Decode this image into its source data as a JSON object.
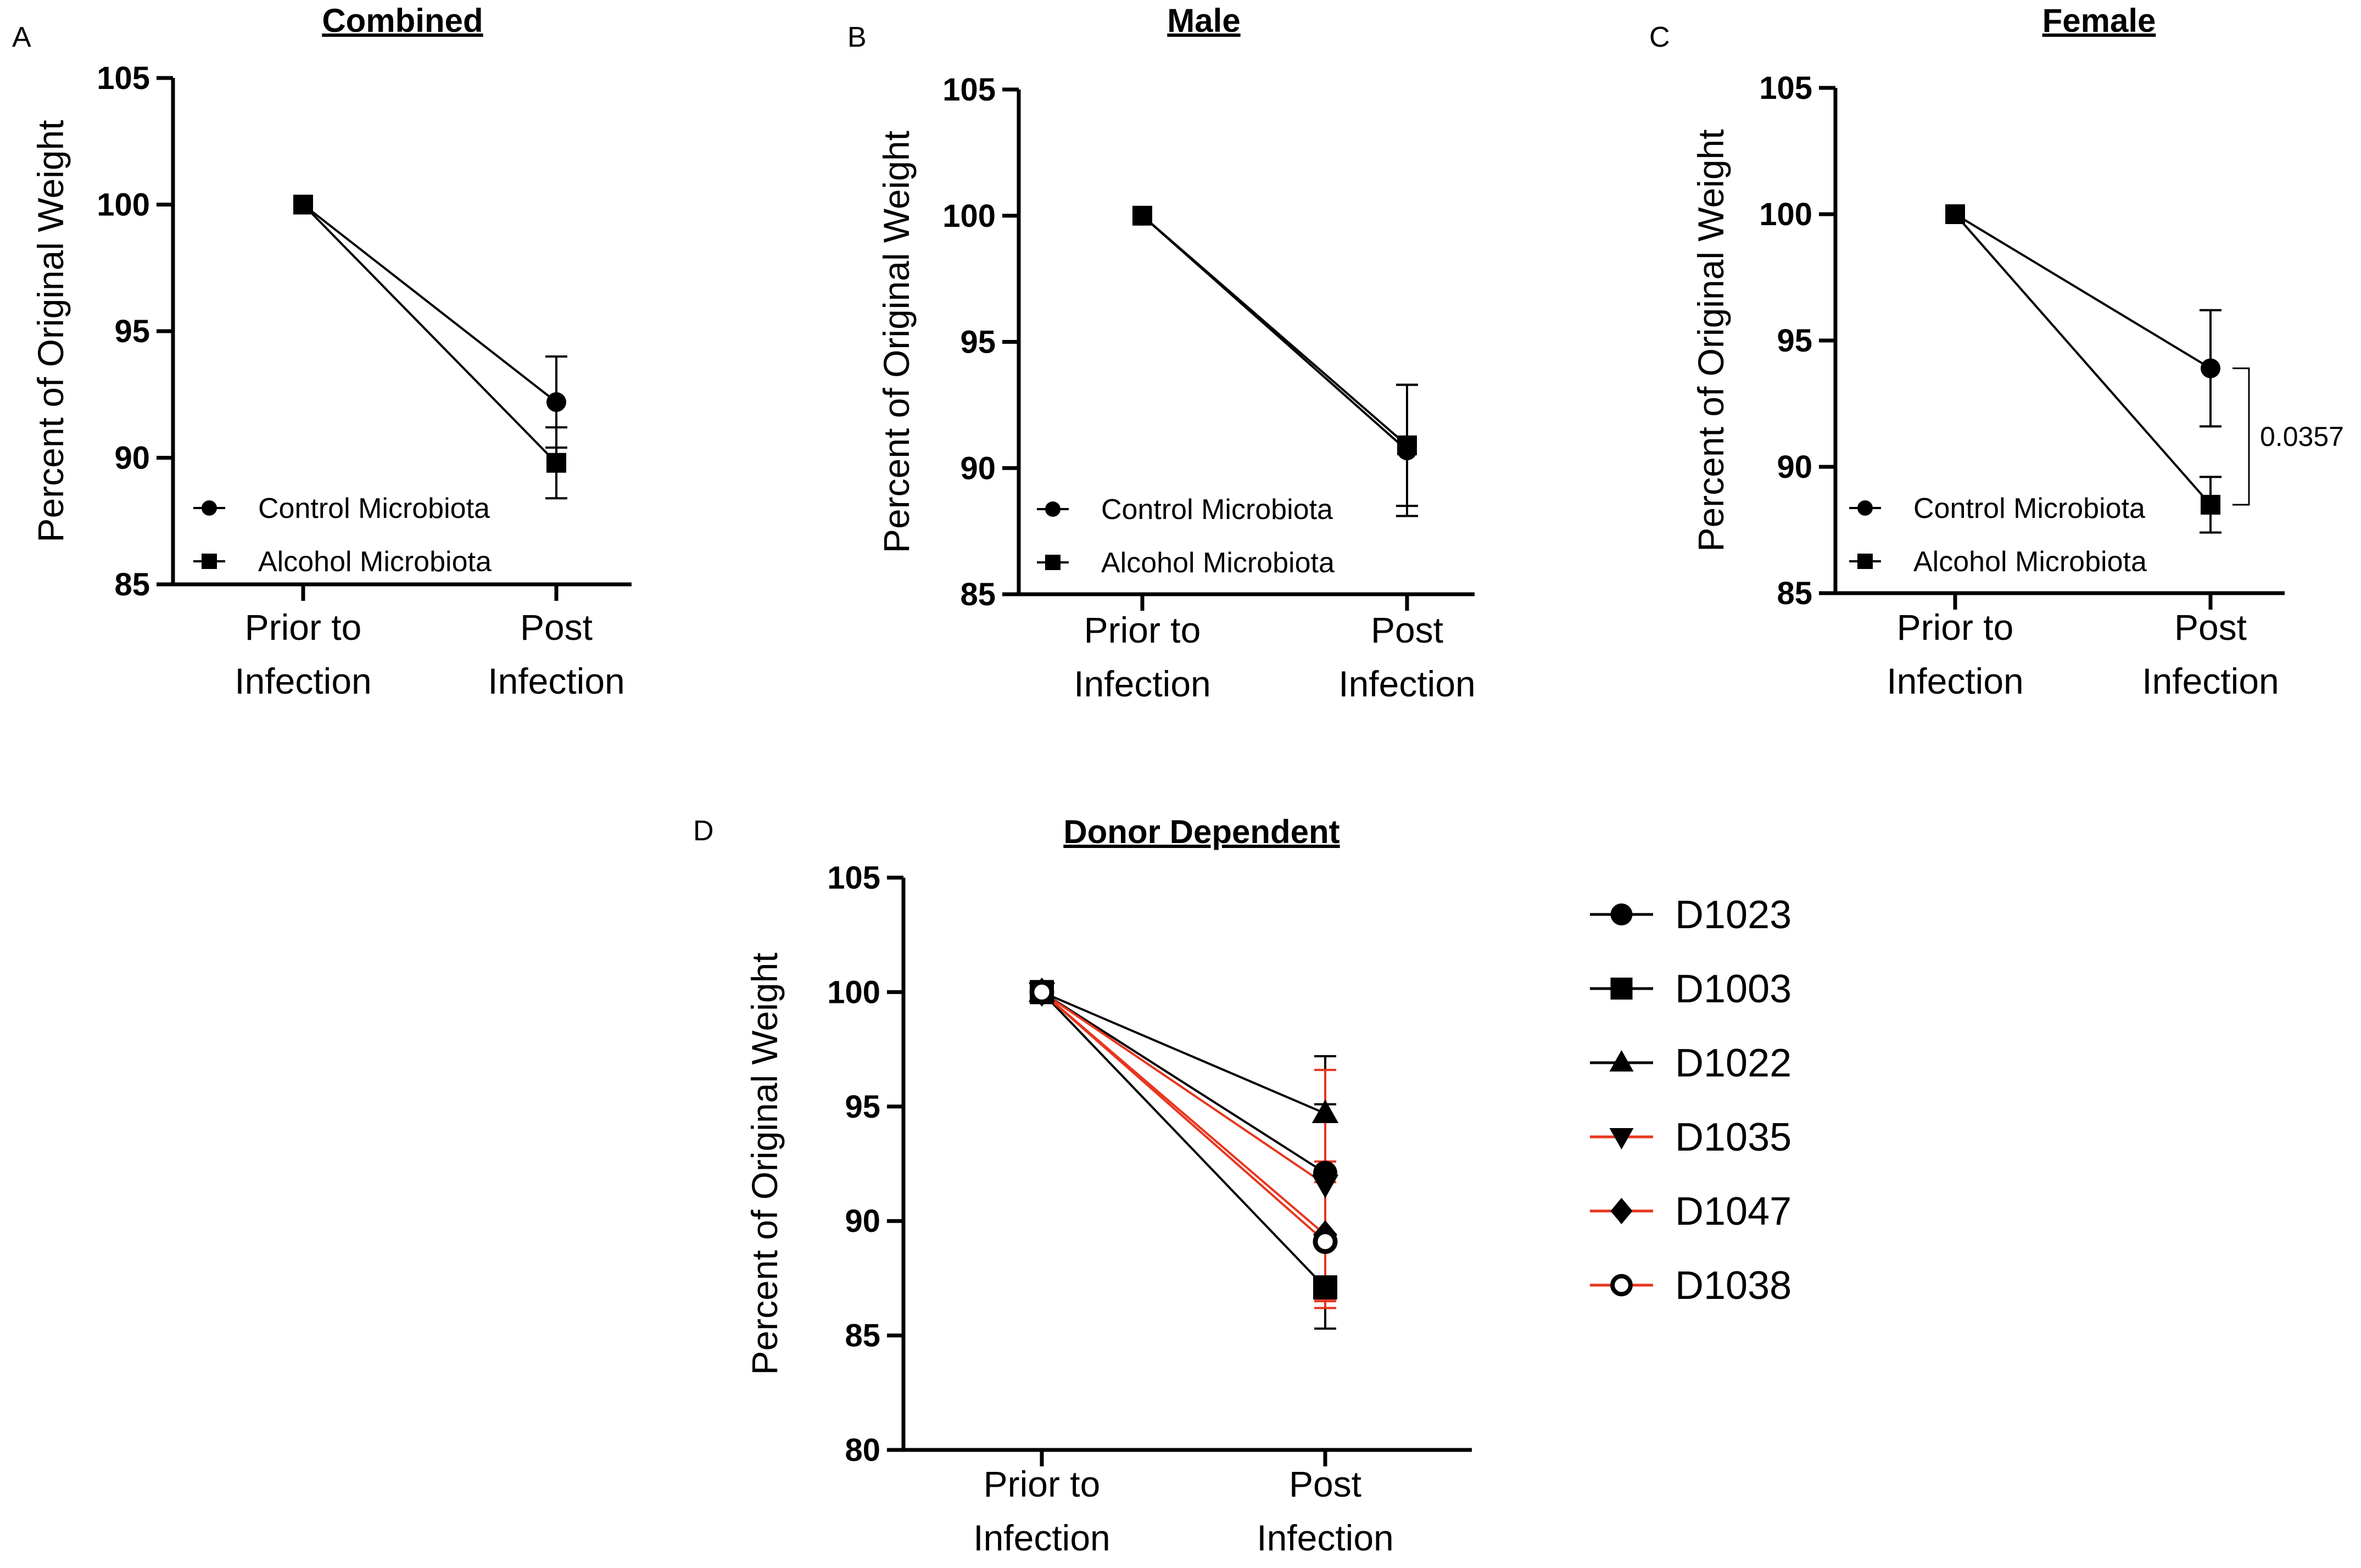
{
  "chart_data": [
    {
      "panel": "A",
      "type": "line",
      "title": "Combined",
      "ylabel": "Percent of Original Weight",
      "ylim": [
        85,
        105
      ],
      "yticks": [
        "85",
        "90",
        "95",
        "100",
        "105"
      ],
      "categories": [
        [
          "Prior to",
          "Infection"
        ],
        [
          "Post",
          "Infection"
        ]
      ],
      "series": [
        {
          "name": "Control Microbiota",
          "marker": "circle",
          "color": "#000000",
          "values": [
            100,
            92.2
          ],
          "error": [
            0,
            1.8
          ]
        },
        {
          "name": "Alcohol Microbiota",
          "marker": "square",
          "color": "#000000",
          "values": [
            100,
            89.8
          ],
          "error": [
            0,
            1.4
          ]
        }
      ],
      "annotation": ""
    },
    {
      "panel": "B",
      "type": "line",
      "title": "Male",
      "ylabel": "Percent of Original Weight",
      "ylim": [
        85,
        105
      ],
      "yticks": [
        "85",
        "90",
        "95",
        "100",
        "105"
      ],
      "categories": [
        [
          "Prior to",
          "Infection"
        ],
        [
          "Post",
          "Infection"
        ]
      ],
      "series": [
        {
          "name": "Control Microbiota",
          "marker": "circle",
          "color": "#000000",
          "values": [
            100,
            90.7
          ],
          "error": [
            0,
            2.6
          ]
        },
        {
          "name": "Alcohol Microbiota",
          "marker": "square",
          "color": "#000000",
          "values": [
            100,
            90.9
          ],
          "error": [
            0,
            2.4
          ]
        }
      ],
      "annotation": ""
    },
    {
      "panel": "C",
      "type": "line",
      "title": "Female",
      "ylabel": "Percent of Original Weight",
      "ylim": [
        85,
        105
      ],
      "yticks": [
        "85",
        "90",
        "95",
        "100",
        "105"
      ],
      "categories": [
        [
          "Prior to",
          "Infection"
        ],
        [
          "Post",
          "Infection"
        ]
      ],
      "series": [
        {
          "name": "Control Microbiota",
          "marker": "circle",
          "color": "#000000",
          "values": [
            100,
            93.9
          ],
          "error": [
            0,
            2.3
          ]
        },
        {
          "name": "Alcohol Microbiota",
          "marker": "square",
          "color": "#000000",
          "values": [
            100,
            88.5
          ],
          "error": [
            0,
            1.1
          ]
        }
      ],
      "annotation": "0.0357"
    },
    {
      "panel": "D",
      "type": "line",
      "title": "Donor Dependent",
      "ylabel": "Percent of Original Weight",
      "ylim": [
        80,
        105
      ],
      "yticks": [
        "80",
        "85",
        "90",
        "95",
        "100",
        "105"
      ],
      "categories": [
        [
          "Prior to",
          "Infection"
        ],
        [
          "Post",
          "Infection"
        ]
      ],
      "series": [
        {
          "name": "D1023",
          "marker": "circle",
          "color": "#000000",
          "values": [
            100,
            92.1
          ],
          "error": [
            0,
            3.0
          ]
        },
        {
          "name": "D1003",
          "marker": "square",
          "color": "#000000",
          "values": [
            100,
            87.1
          ],
          "error": [
            0,
            1.8
          ]
        },
        {
          "name": "D1022",
          "marker": "triangle-up",
          "color": "#000000",
          "values": [
            100,
            94.7
          ],
          "error": [
            0,
            2.5
          ]
        },
        {
          "name": "D1035",
          "marker": "triangle-down",
          "color": "#e8351e",
          "values": [
            100,
            91.6
          ],
          "error": [
            0,
            5.0
          ]
        },
        {
          "name": "D1047",
          "marker": "diamond",
          "color": "#e8351e",
          "values": [
            100,
            89.4
          ],
          "error": [
            0,
            3.2
          ]
        },
        {
          "name": "D1038",
          "marker": "open-circle",
          "color": "#e8351e",
          "values": [
            100,
            89.1
          ],
          "error": [
            0,
            2.6
          ]
        }
      ],
      "annotation": ""
    }
  ]
}
